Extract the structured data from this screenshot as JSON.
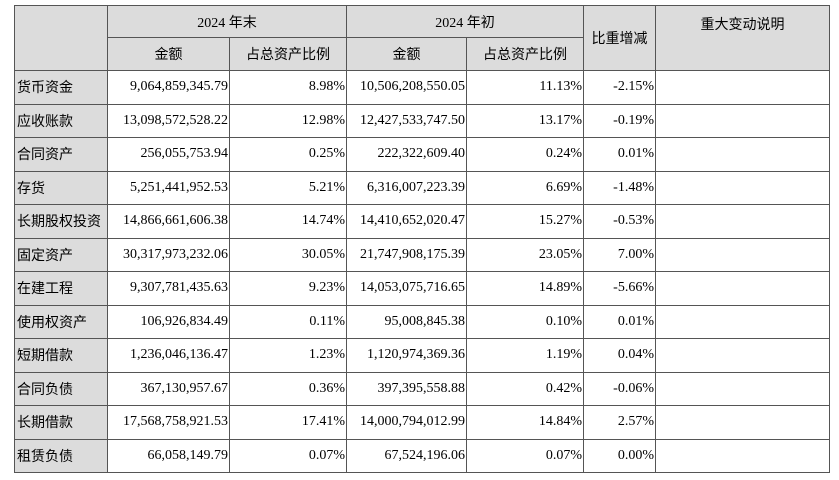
{
  "table": {
    "headers": {
      "end_2024": "2024 年末",
      "start_2024": "2024 年初",
      "ratio_change": "比重增减",
      "major_change": "重大变动说明",
      "amount": "金额",
      "ratio": "占总资产比例"
    },
    "rows": [
      {
        "item": "货币资金",
        "end_amount": "9,064,859,345.79",
        "end_ratio": "8.98%",
        "start_amount": "10,506,208,550.05",
        "start_ratio": "11.13%",
        "change": "-2.15%",
        "note": ""
      },
      {
        "item": "应收账款",
        "end_amount": "13,098,572,528.22",
        "end_ratio": "12.98%",
        "start_amount": "12,427,533,747.50",
        "start_ratio": "13.17%",
        "change": "-0.19%",
        "note": ""
      },
      {
        "item": "合同资产",
        "end_amount": "256,055,753.94",
        "end_ratio": "0.25%",
        "start_amount": "222,322,609.40",
        "start_ratio": "0.24%",
        "change": "0.01%",
        "note": ""
      },
      {
        "item": "存货",
        "end_amount": "5,251,441,952.53",
        "end_ratio": "5.21%",
        "start_amount": "6,316,007,223.39",
        "start_ratio": "6.69%",
        "change": "-1.48%",
        "note": ""
      },
      {
        "item": "长期股权投资",
        "end_amount": "14,866,661,606.38",
        "end_ratio": "14.74%",
        "start_amount": "14,410,652,020.47",
        "start_ratio": "15.27%",
        "change": "-0.53%",
        "note": ""
      },
      {
        "item": "固定资产",
        "end_amount": "30,317,973,232.06",
        "end_ratio": "30.05%",
        "start_amount": "21,747,908,175.39",
        "start_ratio": "23.05%",
        "change": "7.00%",
        "note": ""
      },
      {
        "item": "在建工程",
        "end_amount": "9,307,781,435.63",
        "end_ratio": "9.23%",
        "start_amount": "14,053,075,716.65",
        "start_ratio": "14.89%",
        "change": "-5.66%",
        "note": ""
      },
      {
        "item": "使用权资产",
        "end_amount": "106,926,834.49",
        "end_ratio": "0.11%",
        "start_amount": "95,008,845.38",
        "start_ratio": "0.10%",
        "change": "0.01%",
        "note": ""
      },
      {
        "item": "短期借款",
        "end_amount": "1,236,046,136.47",
        "end_ratio": "1.23%",
        "start_amount": "1,120,974,369.36",
        "start_ratio": "1.19%",
        "change": "0.04%",
        "note": ""
      },
      {
        "item": "合同负债",
        "end_amount": "367,130,957.67",
        "end_ratio": "0.36%",
        "start_amount": "397,395,558.88",
        "start_ratio": "0.42%",
        "change": "-0.06%",
        "note": ""
      },
      {
        "item": "长期借款",
        "end_amount": "17,568,758,921.53",
        "end_ratio": "17.41%",
        "start_amount": "14,000,794,012.99",
        "start_ratio": "14.84%",
        "change": "2.57%",
        "note": ""
      },
      {
        "item": "租赁负债",
        "end_amount": "66,058,149.79",
        "end_ratio": "0.07%",
        "start_amount": "67,524,196.06",
        "start_ratio": "0.07%",
        "change": "0.00%",
        "note": ""
      }
    ]
  }
}
